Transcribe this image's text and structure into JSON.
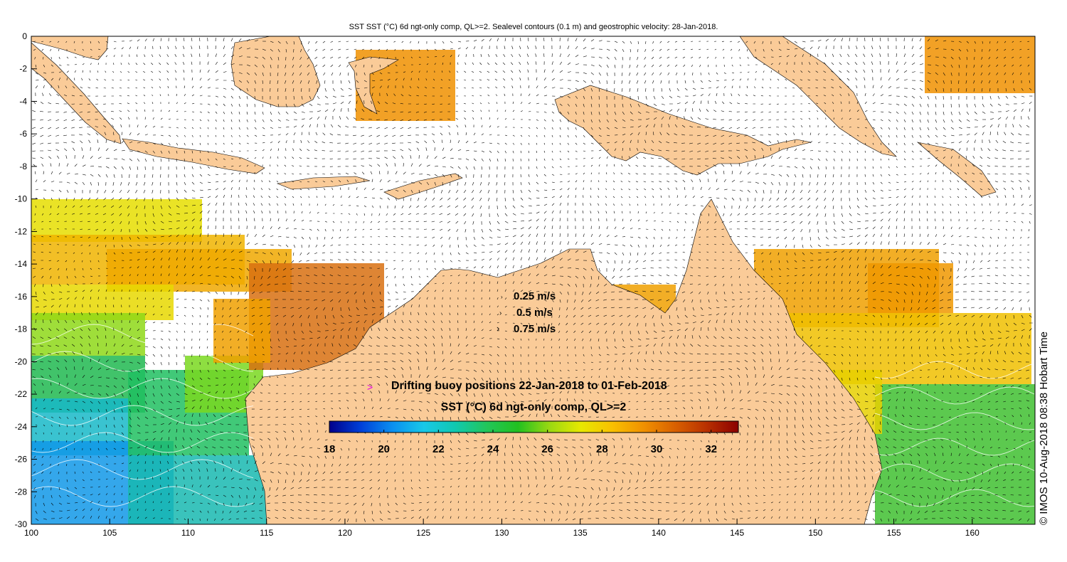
{
  "title": "SST SST (°C) 6d ngt-only comp, QL>=2. Sealevel contours (0.1 m) and geostrophic velocity: 28-Jan-2018.",
  "axes": {
    "x_ticks": [
      "100",
      "105",
      "110",
      "115",
      "120",
      "125",
      "130",
      "135",
      "140",
      "145",
      "150",
      "155",
      "160"
    ],
    "y_ticks": [
      "0",
      "-2",
      "-4",
      "-6",
      "-8",
      "-10",
      "-12",
      "-14",
      "-16",
      "-18",
      "-20",
      "-22",
      "-24",
      "-26",
      "-28",
      "-30"
    ],
    "x_range": [
      100,
      164
    ],
    "y_range": [
      -30,
      0
    ]
  },
  "velocity_legend": [
    "0.25 m/s",
    "0.5 m/s",
    "0.75 m/s"
  ],
  "buoy_legend": "Drifting buoy positions 22-Jan-2018 to 01-Feb-2018",
  "colorbar": {
    "label": "SST (°C) 6d ngt-only comp, QL>=2",
    "ticks": [
      "18",
      "20",
      "22",
      "24",
      "26",
      "28",
      "30",
      "32"
    ],
    "range": [
      18,
      33
    ],
    "colors": [
      "#00008b",
      "#0040d8",
      "#0a8ff0",
      "#18c8e8",
      "#10c8b0",
      "#22c65a",
      "#22c020",
      "#9ad812",
      "#e8e800",
      "#f8c000",
      "#f09000",
      "#d86000",
      "#b83000",
      "#8b0000"
    ]
  },
  "credit": "© IMOS 10-Aug-2018 08:38 Hobart Time",
  "colors": {
    "land": "#facb98",
    "background": "#ffffff",
    "buoy_marker": "#e000e0",
    "coast_outline": "#00cccc"
  }
}
